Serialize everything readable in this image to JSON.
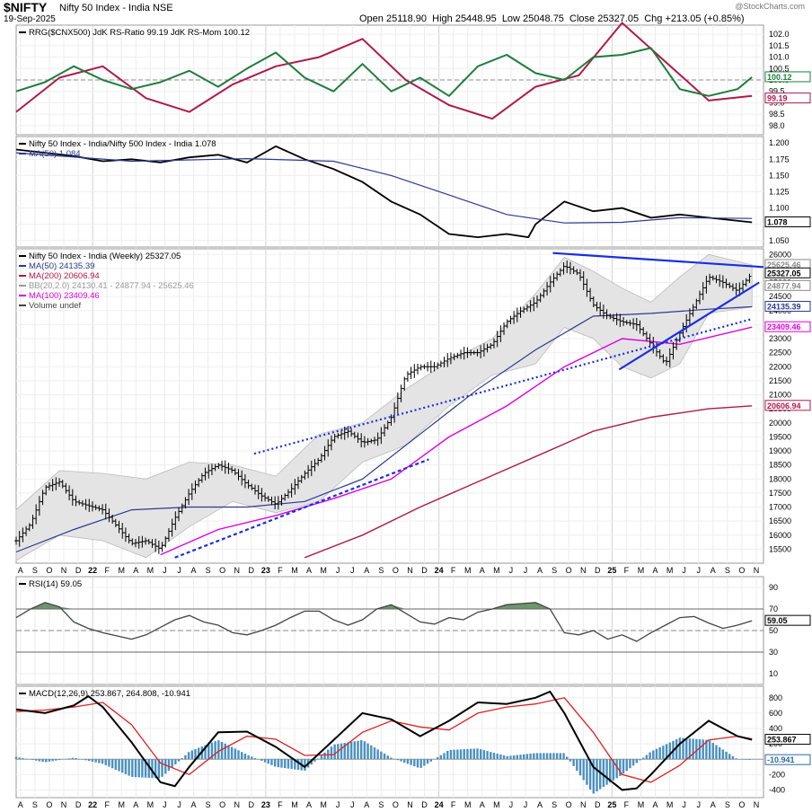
{
  "header": {
    "symbol": "$NIFTY",
    "name": "Nifty 50 Index - India  NSE",
    "date": "19-Sep-2025",
    "watermark": "@StockCharts.com",
    "quote": "Open 25118.90  High 25448.95  Low 25048.75  Close 25327.05  Chg +213.05 (+0.85%)"
  },
  "x_axis": {
    "labels": [
      "A",
      "S",
      "O",
      "N",
      "D",
      "22",
      "F",
      "M",
      "A",
      "M",
      "J",
      "J",
      "A",
      "S",
      "O",
      "N",
      "D",
      "23",
      "F",
      "M",
      "A",
      "M",
      "J",
      "J",
      "A",
      "S",
      "O",
      "N",
      "D",
      "24",
      "F",
      "M",
      "A",
      "M",
      "J",
      "J",
      "A",
      "S",
      "O",
      "N",
      "D",
      "25",
      "F",
      "M",
      "A",
      "M",
      "J",
      "J",
      "A",
      "S",
      "O",
      "N"
    ],
    "year_labels": [
      "22",
      "23",
      "24",
      "25"
    ],
    "start": "2021-08",
    "end": "2025-11"
  },
  "chart_data": [
    {
      "type": "line",
      "panel": "rrg",
      "legend": "RRG($CNX500) JdK RS-Ratio 99.19 JdK RS-Mom 100.12",
      "ylim": [
        97.6,
        102.4
      ],
      "yticks": [
        98.0,
        98.5,
        99.0,
        99.5,
        100.0,
        100.5,
        101.0,
        101.5,
        102.0
      ],
      "ytick_labels": [
        "98.0",
        "98.5",
        "99.0",
        "99.5",
        "100.0",
        "100.5",
        "101.0",
        "101.5",
        "102.0"
      ],
      "ref_line": 100,
      "last_value_labels": [
        {
          "text": "100.12",
          "value": 100.12,
          "color": "#1e7d3a"
        },
        {
          "text": "99.19",
          "value": 99.19,
          "color": "#b0194a"
        }
      ],
      "series": [
        {
          "name": "JdK RS-Ratio",
          "color": "#b0194a",
          "t": [
            0,
            3,
            6,
            9,
            12,
            15,
            18,
            21,
            24,
            27,
            30,
            33,
            36,
            39,
            42,
            45,
            48,
            51
          ],
          "values": [
            98.6,
            100.1,
            100.6,
            99.2,
            98.6,
            99.8,
            100.6,
            101.0,
            101.8,
            100.0,
            98.9,
            98.3,
            99.7,
            100.2,
            102.5,
            100.8,
            99.1,
            99.3
          ]
        },
        {
          "name": "JdK RS-Mom",
          "color": "#1e7d3a",
          "t": [
            0,
            2,
            4,
            6,
            8,
            10,
            12,
            14,
            16,
            18,
            20,
            22,
            24,
            26,
            28,
            30,
            32,
            34,
            36,
            38,
            40,
            42,
            44,
            46,
            48,
            50,
            51
          ],
          "values": [
            99.5,
            99.9,
            100.6,
            100.0,
            99.6,
            99.9,
            100.4,
            99.7,
            100.5,
            101.2,
            100.1,
            99.5,
            100.7,
            99.5,
            100.1,
            99.3,
            100.6,
            101.1,
            100.3,
            100.0,
            101.0,
            101.1,
            101.4,
            99.6,
            99.3,
            99.6,
            100.12
          ]
        }
      ]
    },
    {
      "type": "line",
      "panel": "relative",
      "legend": "Nifty 50 Index - India/Nifty 500 Index - India 1.078",
      "legend2": "MA(50) 1.084",
      "ylim": [
        1.04,
        1.21
      ],
      "yticks": [
        1.05,
        1.075,
        1.1,
        1.125,
        1.15,
        1.175,
        1.2
      ],
      "ytick_labels": [
        "1.050",
        "1.075",
        "1.100",
        "1.125",
        "1.150",
        "1.175",
        "1.200"
      ],
      "last_value_labels": [
        {
          "text": "1.078",
          "value": 1.078,
          "color": "#000000"
        }
      ],
      "series": [
        {
          "name": "Nifty 50 Index - India/Nifty 500 Index - India",
          "color": "#000000",
          "t": [
            0,
            2,
            4,
            6,
            8,
            10,
            12,
            14,
            16,
            18,
            20,
            22,
            24,
            26,
            28,
            30,
            32,
            34,
            35.5,
            36,
            38,
            40,
            42,
            44,
            46,
            48,
            51
          ],
          "values": [
            1.19,
            1.185,
            1.18,
            1.172,
            1.175,
            1.17,
            1.178,
            1.182,
            1.17,
            1.195,
            1.175,
            1.16,
            1.14,
            1.11,
            1.09,
            1.06,
            1.055,
            1.06,
            1.055,
            1.075,
            1.11,
            1.095,
            1.1,
            1.085,
            1.09,
            1.085,
            1.078
          ]
        },
        {
          "name": "MA(50)",
          "color": "#2b3a8f",
          "t": [
            0,
            8,
            16,
            22,
            26,
            30,
            34,
            38,
            42,
            46,
            51
          ],
          "values": [
            1.185,
            1.172,
            1.176,
            1.172,
            1.15,
            1.12,
            1.09,
            1.077,
            1.078,
            1.085,
            1.084
          ]
        }
      ]
    },
    {
      "type": "ohlc",
      "panel": "price",
      "legend": "Nifty 50 Index - India (Weekly) 25327.05",
      "ylim": [
        15000,
        26200
      ],
      "yticks": [
        15500,
        16000,
        16500,
        17000,
        17500,
        18000,
        18500,
        19000,
        19500,
        20000,
        20500,
        21000,
        21500,
        22000,
        22500,
        23000,
        23500,
        24000,
        24500,
        25000,
        25500,
        26000
      ],
      "ytick_labels": [
        "15500",
        "16000",
        "16500",
        "17000",
        "17500",
        "18000",
        "18500",
        "19000",
        "19500",
        "20000",
        "20500",
        "21000",
        "21500",
        "22000",
        "22500",
        "23000",
        "23500",
        "24000",
        "24500",
        "25000",
        "25500",
        "26000"
      ],
      "legend_entries": [
        {
          "text": "MA(50) 24135.39",
          "color": "#2b3a8f"
        },
        {
          "text": "MA(200) 20606.94",
          "color": "#b0194a"
        },
        {
          "text": "BB(20,2.0) 24130.41 - 24877.94 - 25625.46",
          "color": "#999999"
        },
        {
          "text": "MA(100) 23409.46",
          "color": "#e000e0"
        },
        {
          "text": "Volume undef",
          "color": "#444444"
        }
      ],
      "last_value_labels": [
        {
          "text": "25625.46",
          "value": 25625.46,
          "color": "#888888"
        },
        {
          "text": "25327.05",
          "value": 25327.05,
          "color": "#000000"
        },
        {
          "text": "24877.94",
          "value": 24877.94,
          "color": "#888888"
        },
        {
          "text": "24135.39",
          "value": 24135.39,
          "color": "#2b3a8f"
        },
        {
          "text": "23409.46",
          "value": 23409.46,
          "color": "#e000e0"
        },
        {
          "text": "20606.94",
          "value": 20606.94,
          "color": "#b0194a"
        }
      ],
      "price_path": {
        "t": [
          0,
          1,
          2,
          3,
          4,
          6,
          7,
          8,
          9,
          10,
          11,
          12,
          13,
          14,
          15,
          16,
          17,
          18,
          19,
          20,
          21,
          22,
          23,
          24,
          25,
          26,
          27,
          28,
          29,
          30,
          31,
          32,
          33,
          34,
          35,
          36,
          37,
          38,
          39,
          40,
          41,
          42,
          43,
          44,
          45,
          46,
          47,
          48,
          49,
          50,
          51
        ],
        "values": [
          15800,
          16400,
          17700,
          17900,
          17200,
          16900,
          16300,
          15700,
          15800,
          15500,
          16600,
          17500,
          18200,
          18500,
          18300,
          17800,
          17400,
          17100,
          17600,
          18200,
          18700,
          19500,
          19700,
          19300,
          19400,
          20200,
          21700,
          22000,
          22000,
          22300,
          22500,
          22500,
          22800,
          23600,
          24000,
          24300,
          25000,
          25600,
          25300,
          24200,
          23800,
          23600,
          23500,
          22800,
          22100,
          23200,
          24200,
          25200,
          25000,
          24700,
          25327
        ]
      },
      "ma50": {
        "t": [
          0,
          4,
          8,
          12,
          16,
          20,
          24,
          28,
          32,
          36,
          40,
          44,
          48,
          51
        ],
        "values": [
          15400,
          16200,
          16900,
          17000,
          17000,
          17200,
          18000,
          19600,
          21200,
          22600,
          23800,
          23900,
          24050,
          24135
        ]
      },
      "ma100": {
        "t": [
          10,
          14,
          18,
          22,
          26,
          30,
          34,
          38,
          42,
          46,
          51
        ],
        "values": [
          15300,
          16200,
          16700,
          17300,
          18000,
          19500,
          20600,
          22000,
          23000,
          22800,
          23409
        ]
      },
      "ma200": {
        "t": [
          20,
          24,
          28,
          32,
          36,
          40,
          44,
          48,
          51
        ],
        "values": [
          15200,
          16000,
          17000,
          17900,
          18800,
          19700,
          20200,
          20500,
          20607
        ]
      },
      "bb_upper": {
        "t": [
          0,
          3,
          6,
          9,
          12,
          15,
          18,
          21,
          24,
          27,
          30,
          33,
          36,
          38,
          40,
          42,
          44,
          46,
          48,
          51
        ],
        "values": [
          16900,
          18300,
          18200,
          18000,
          18600,
          18500,
          18100,
          19600,
          20000,
          21200,
          22200,
          23000,
          24600,
          25900,
          25400,
          24800,
          24300,
          25200,
          26000,
          25626
        ]
      },
      "bb_lower": {
        "t": [
          0,
          3,
          6,
          9,
          12,
          15,
          18,
          21,
          24,
          27,
          30,
          33,
          36,
          38,
          40,
          42,
          44,
          46,
          48,
          51
        ],
        "values": [
          15100,
          16000,
          15800,
          15200,
          16300,
          17200,
          16800,
          17200,
          18600,
          19200,
          20600,
          21700,
          22100,
          23400,
          23000,
          22000,
          21600,
          22100,
          23900,
          24130
        ]
      },
      "trendlines": [
        {
          "style": "dotted",
          "color": "#1a2ee0",
          "t": [
            16.5,
            51
          ],
          "values": [
            18900,
            23700
          ]
        },
        {
          "style": "dashed",
          "color": "#1a2ee0",
          "t": [
            11,
            28.6
          ],
          "values": [
            15200,
            18700
          ]
        },
        {
          "style": "solid",
          "color": "#1a2ee0",
          "t": [
            37.2,
            51.8
          ],
          "values": [
            26050,
            25550
          ]
        },
        {
          "style": "solid",
          "color": "#1a2ee0",
          "t": [
            41.8,
            51.5
          ],
          "values": [
            21900,
            25000
          ]
        }
      ]
    },
    {
      "type": "line",
      "panel": "rsi",
      "legend": "RSI(14) 59.05",
      "ylim": [
        0,
        100
      ],
      "yticks": [
        10,
        30,
        50,
        70,
        90
      ],
      "ytick_labels": [
        "10",
        "30",
        "50",
        "70",
        "90"
      ],
      "bands": [
        30,
        70
      ],
      "midline": 50,
      "last_value_labels": [
        {
          "text": "59.05",
          "value": 59.05,
          "color": "#000000"
        }
      ],
      "series": [
        {
          "name": "RSI(14)",
          "color": "#444444",
          "t": [
            0,
            1,
            2,
            3,
            4,
            5,
            6,
            7,
            8,
            9,
            10,
            11,
            12,
            13,
            14,
            15,
            16,
            17,
            18,
            19,
            20,
            21,
            22,
            23,
            24,
            25,
            26,
            27,
            28,
            29,
            30,
            31,
            32,
            33,
            34,
            35,
            36,
            37,
            38,
            39,
            40,
            41,
            42,
            43,
            44,
            45,
            46,
            47,
            48,
            49,
            50,
            51
          ],
          "values": [
            62,
            70,
            76,
            72,
            58,
            52,
            48,
            45,
            42,
            46,
            53,
            60,
            64,
            58,
            55,
            48,
            46,
            50,
            55,
            62,
            68,
            68,
            60,
            55,
            60,
            70,
            74,
            66,
            58,
            56,
            62,
            60,
            67,
            70,
            74,
            75,
            76,
            70,
            48,
            46,
            50,
            42,
            46,
            40,
            48,
            55,
            62,
            63,
            57,
            52,
            55,
            59.05
          ]
        }
      ]
    },
    {
      "type": "line",
      "panel": "macd",
      "legend": "MACD(12,26,9) 253.867, 264.808, -10.941",
      "ylim": [
        -500,
        950
      ],
      "yticks": [
        -400,
        -200,
        0,
        200,
        400,
        600,
        800
      ],
      "ytick_labels": [
        "-400",
        "-200",
        "0",
        "200",
        "400",
        "600",
        "800"
      ],
      "last_value_labels": [
        {
          "text": "253.867",
          "value": 253.867,
          "color": "#000000"
        },
        {
          "text": "-10.941",
          "value": -10.941,
          "color": "#2a6aa0"
        }
      ],
      "series": [
        {
          "name": "MACD",
          "color": "#000000",
          "t": [
            0,
            2,
            4,
            5,
            6,
            8,
            10,
            11,
            12,
            14,
            16,
            18,
            20,
            22,
            24,
            26,
            28,
            30,
            32,
            34,
            36,
            37,
            38,
            40,
            42,
            43,
            44,
            46,
            48,
            50,
            51
          ],
          "values": [
            650,
            600,
            700,
            820,
            680,
            220,
            -300,
            -350,
            -100,
            350,
            360,
            160,
            -100,
            250,
            600,
            520,
            300,
            500,
            740,
            720,
            800,
            880,
            600,
            -100,
            -400,
            -380,
            -200,
            200,
            500,
            300,
            254
          ]
        },
        {
          "name": "Signal",
          "color": "#e02020",
          "t": [
            0,
            2,
            4,
            6,
            8,
            10,
            12,
            14,
            16,
            18,
            20,
            22,
            24,
            26,
            28,
            30,
            32,
            34,
            36,
            38,
            40,
            42,
            44,
            46,
            48,
            50,
            51
          ],
          "values": [
            620,
            640,
            680,
            740,
            450,
            -50,
            -200,
            100,
            300,
            260,
            50,
            60,
            350,
            500,
            420,
            380,
            600,
            680,
            720,
            800,
            350,
            -200,
            -300,
            -80,
            250,
            300,
            265
          ]
        },
        {
          "name": "Histogram",
          "color": "#4a90c0",
          "bars": true,
          "t": [
            0,
            2,
            4,
            6,
            8,
            10,
            12,
            14,
            16,
            18,
            20,
            22,
            24,
            26,
            28,
            30,
            32,
            34,
            36,
            38,
            40,
            42,
            44,
            46,
            48,
            50,
            51
          ],
          "values": [
            30,
            -40,
            20,
            -60,
            -230,
            -250,
            100,
            250,
            60,
            -100,
            -150,
            190,
            250,
            20,
            -120,
            120,
            140,
            40,
            80,
            80,
            -450,
            -200,
            100,
            280,
            250,
            0,
            -11
          ]
        }
      ]
    }
  ]
}
